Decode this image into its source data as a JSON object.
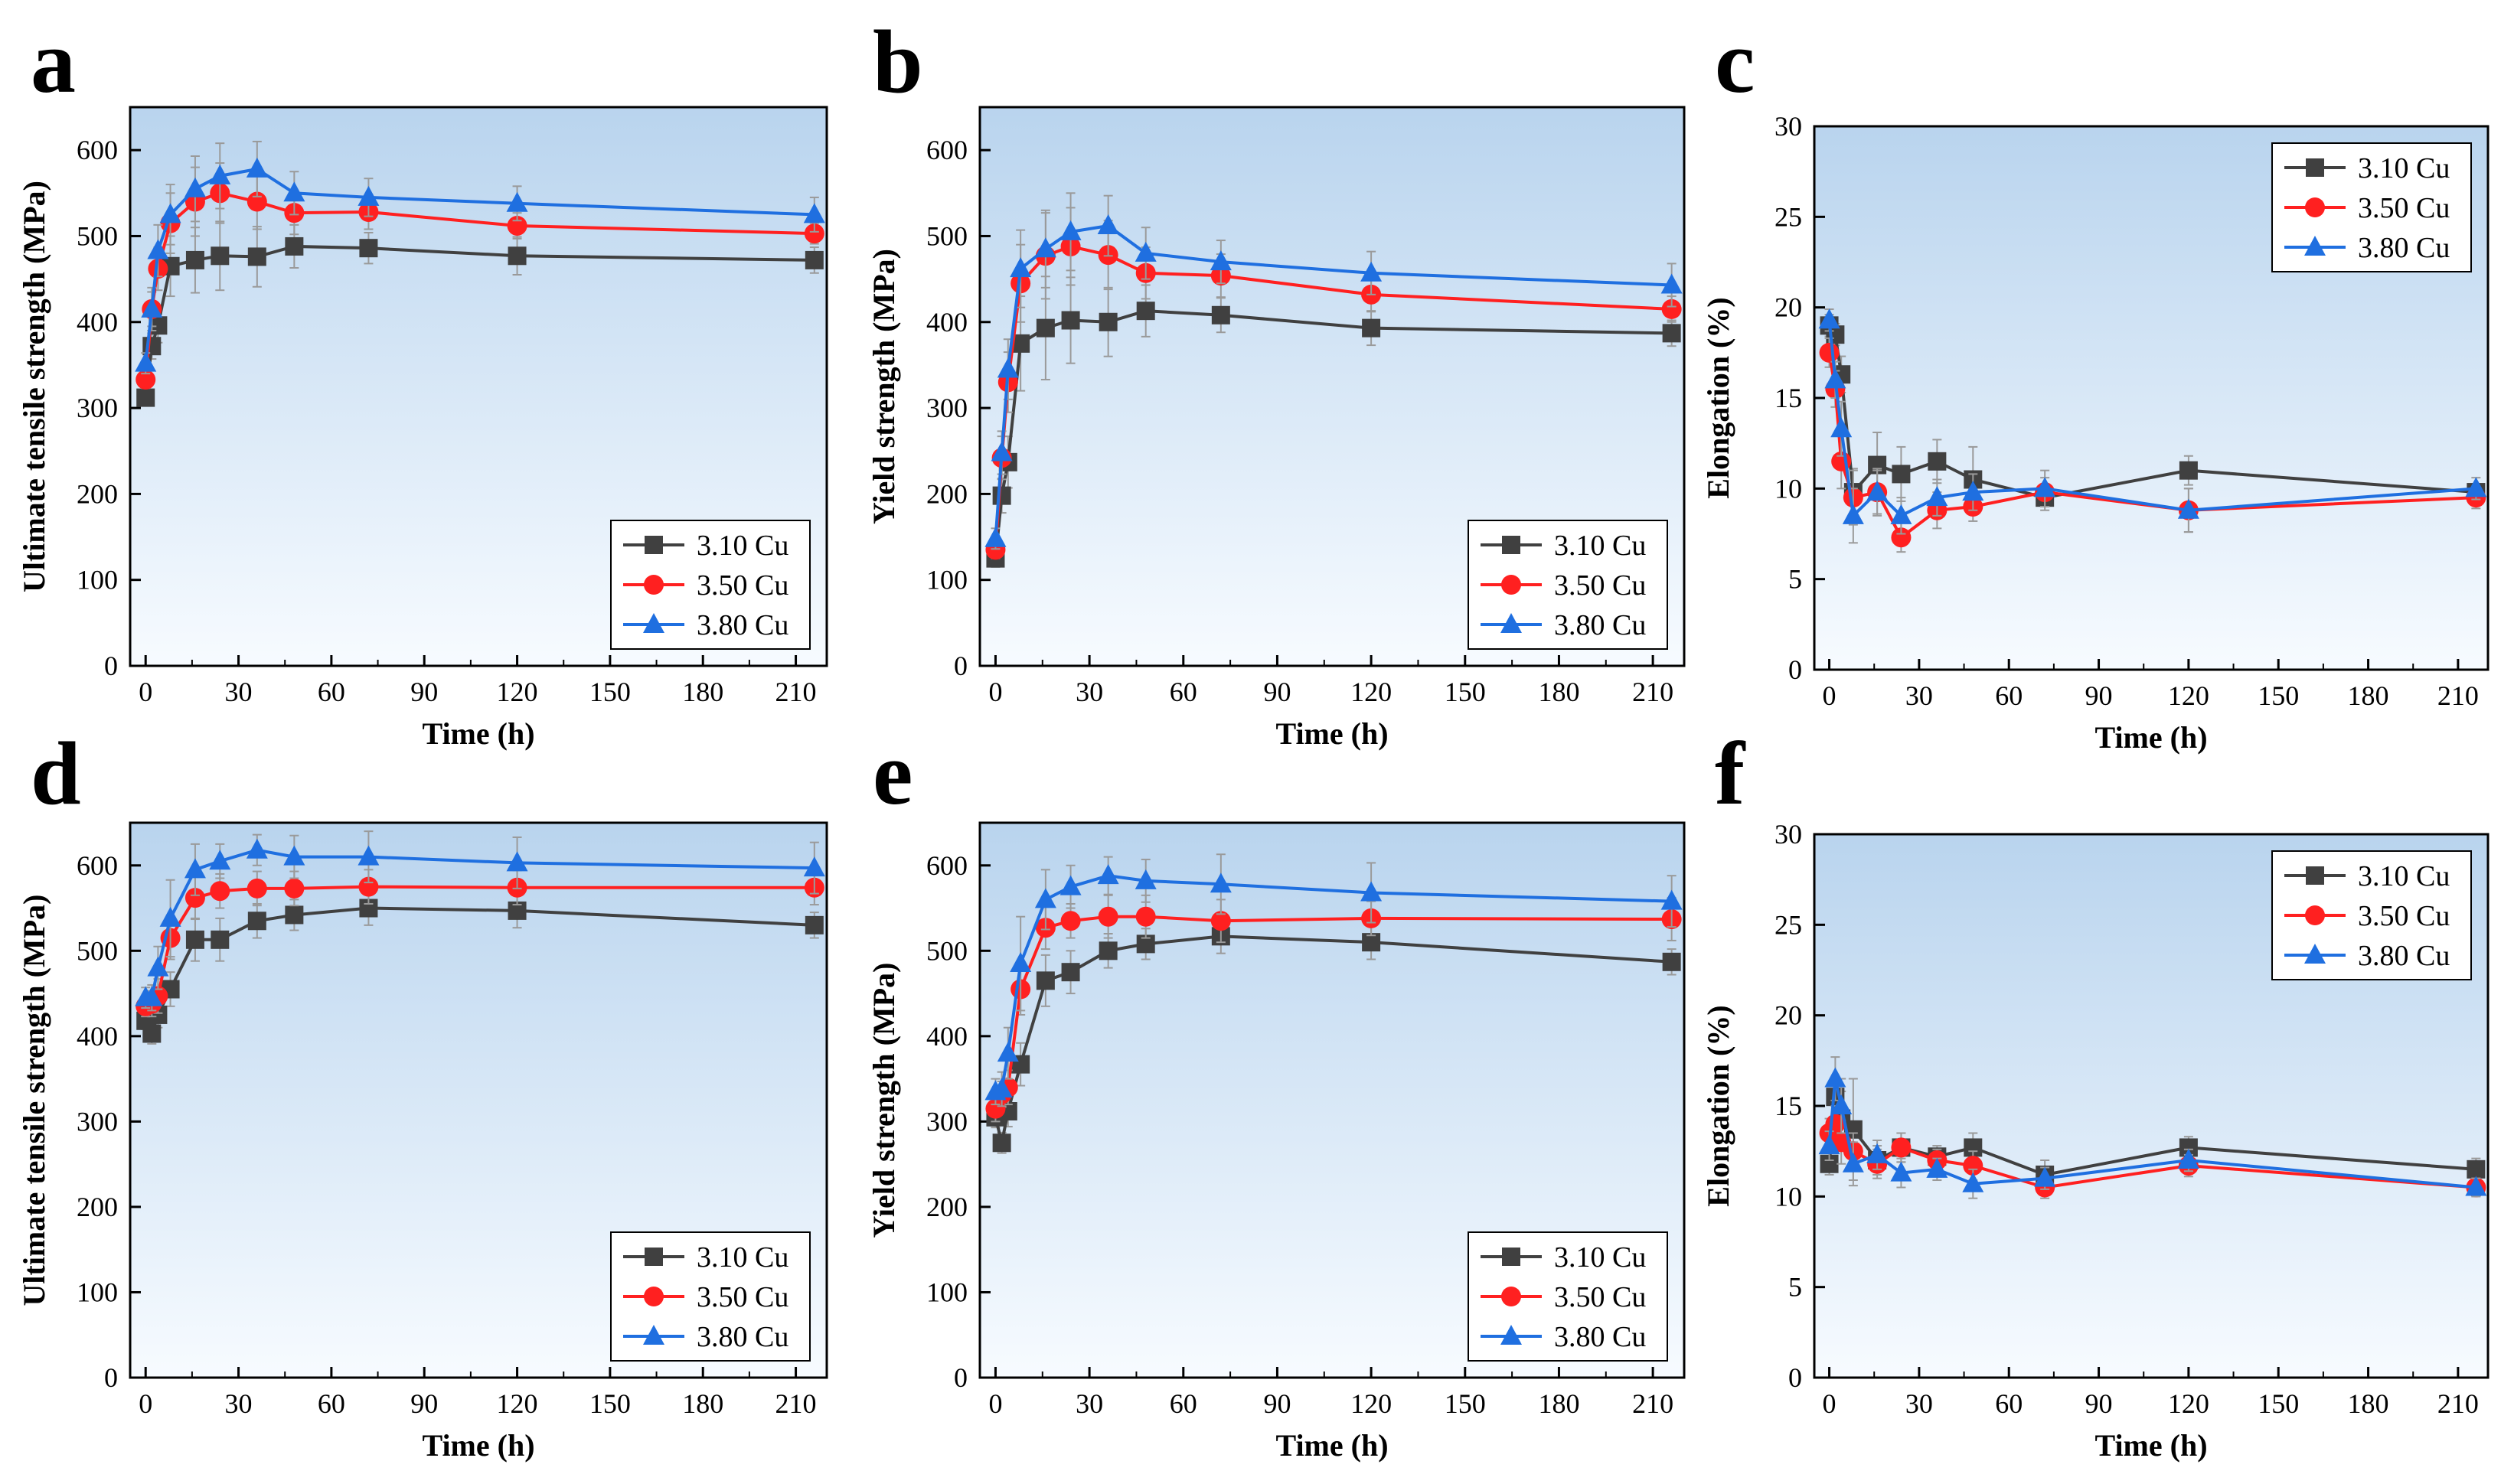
{
  "colors": {
    "series": [
      "#404040",
      "#ff2020",
      "#1f6fe0"
    ],
    "bg_top": "#b9d4ee",
    "bg_bottom": "#f7fbff",
    "error_bar": "#9a9a9a"
  },
  "chart_data": [
    {
      "type": "line",
      "panel": "a",
      "xlabel": "Time (h)",
      "ylabel": "Ultimate tensile strength (MPa)",
      "xlim": [
        -5,
        220
      ],
      "ylim": [
        0,
        650
      ],
      "xticks": [
        0,
        30,
        60,
        90,
        120,
        150,
        180,
        210
      ],
      "yticks": [
        0,
        100,
        200,
        300,
        400,
        500,
        600
      ],
      "legend_position": "bottom-right",
      "series": [
        {
          "name": "3.10 Cu",
          "marker": "square",
          "x": [
            0,
            2,
            4,
            8,
            16,
            24,
            36,
            48,
            72,
            120,
            216
          ],
          "y": [
            312,
            372,
            396,
            465,
            472,
            477,
            476,
            488,
            486,
            477,
            472
          ],
          "err": [
            8,
            15,
            20,
            35,
            38,
            40,
            35,
            25,
            18,
            22,
            15
          ]
        },
        {
          "name": "3.50 Cu",
          "marker": "circle",
          "x": [
            0,
            2,
            4,
            8,
            16,
            24,
            36,
            48,
            72,
            120,
            216
          ],
          "y": [
            333,
            415,
            462,
            515,
            540,
            550,
            540,
            527,
            528,
            512,
            503
          ],
          "err": [
            10,
            20,
            25,
            35,
            40,
            35,
            32,
            25,
            20,
            15,
            12
          ]
        },
        {
          "name": "3.80 Cu",
          "marker": "triangle",
          "x": [
            0,
            2,
            4,
            8,
            16,
            24,
            36,
            48,
            72,
            120,
            216
          ],
          "y": [
            352,
            415,
            483,
            525,
            555,
            570,
            578,
            550,
            545,
            538,
            525
          ],
          "err": [
            12,
            25,
            30,
            35,
            38,
            38,
            32,
            25,
            22,
            20,
            20
          ]
        }
      ]
    },
    {
      "type": "line",
      "panel": "b",
      "xlabel": "Time (h)",
      "ylabel": "Yield strength (MPa)",
      "xlim": [
        -5,
        220
      ],
      "ylim": [
        0,
        650
      ],
      "xticks": [
        0,
        30,
        60,
        90,
        120,
        150,
        180,
        210
      ],
      "yticks": [
        0,
        100,
        200,
        300,
        400,
        500,
        600
      ],
      "legend_position": "bottom-right",
      "series": [
        {
          "name": "3.10 Cu",
          "marker": "square",
          "x": [
            0,
            2,
            4,
            8,
            16,
            24,
            36,
            48,
            72,
            120,
            216
          ],
          "y": [
            125,
            198,
            237,
            375,
            393,
            402,
            400,
            413,
            408,
            393,
            387
          ],
          "err": [
            10,
            20,
            30,
            55,
            60,
            50,
            40,
            30,
            20,
            20,
            15
          ]
        },
        {
          "name": "3.50 Cu",
          "marker": "circle",
          "x": [
            0,
            2,
            4,
            8,
            16,
            24,
            36,
            48,
            72,
            120,
            216
          ],
          "y": [
            135,
            242,
            330,
            445,
            477,
            488,
            478,
            457,
            454,
            432,
            415
          ],
          "err": [
            10,
            25,
            35,
            45,
            50,
            45,
            40,
            30,
            25,
            20,
            15
          ]
        },
        {
          "name": "3.80 Cu",
          "marker": "triangle",
          "x": [
            0,
            2,
            4,
            8,
            16,
            24,
            36,
            48,
            72,
            120,
            216
          ],
          "y": [
            148,
            248,
            345,
            462,
            485,
            505,
            512,
            480,
            470,
            457,
            443
          ],
          "err": [
            12,
            25,
            35,
            45,
            45,
            45,
            35,
            30,
            25,
            25,
            25
          ]
        }
      ]
    },
    {
      "type": "line",
      "panel": "c",
      "xlabel": "Time (h)",
      "ylabel": "Elongation (%)",
      "xlim": [
        -5,
        220
      ],
      "ylim": [
        0,
        30
      ],
      "xticks": [
        0,
        30,
        60,
        90,
        120,
        150,
        180,
        210
      ],
      "yticks": [
        0,
        5,
        10,
        15,
        20,
        25,
        30
      ],
      "legend_position": "top-right",
      "series": [
        {
          "name": "3.10 Cu",
          "marker": "square",
          "x": [
            0,
            2,
            4,
            8,
            16,
            24,
            36,
            48,
            72,
            120,
            216
          ],
          "y": [
            19.0,
            18.5,
            16.3,
            9.8,
            11.3,
            10.8,
            11.5,
            10.5,
            9.5,
            11.0,
            9.8
          ],
          "err": [
            0.6,
            0.6,
            1.0,
            1.3,
            1.8,
            1.5,
            1.2,
            1.8,
            0.7,
            0.8,
            0.4
          ]
        },
        {
          "name": "3.50 Cu",
          "marker": "circle",
          "x": [
            0,
            2,
            4,
            8,
            16,
            24,
            36,
            48,
            72,
            120,
            216
          ],
          "y": [
            17.5,
            15.5,
            11.5,
            9.5,
            9.8,
            7.3,
            8.8,
            9.0,
            9.8,
            8.8,
            9.5
          ],
          "err": [
            0.8,
            1.0,
            1.5,
            1.5,
            1.3,
            0.8,
            1.0,
            0.8,
            0.8,
            1.2,
            0.6
          ]
        },
        {
          "name": "3.80 Cu",
          "marker": "triangle",
          "x": [
            0,
            2,
            4,
            8,
            16,
            24,
            36,
            48,
            72,
            120,
            216
          ],
          "y": [
            19.3,
            16.0,
            13.3,
            8.5,
            9.8,
            8.5,
            9.5,
            9.8,
            10.0,
            8.8,
            10.0
          ],
          "err": [
            0.6,
            1.0,
            1.5,
            1.5,
            1.2,
            1.0,
            1.0,
            1.0,
            1.0,
            1.2,
            0.6
          ]
        }
      ]
    },
    {
      "type": "line",
      "panel": "d",
      "xlabel": "Time (h)",
      "ylabel": "Ultimate tensile strength (MPa)",
      "xlim": [
        -5,
        220
      ],
      "ylim": [
        0,
        650
      ],
      "xticks": [
        0,
        30,
        60,
        90,
        120,
        150,
        180,
        210
      ],
      "yticks": [
        0,
        100,
        200,
        300,
        400,
        500,
        600
      ],
      "legend_position": "bottom-right",
      "series": [
        {
          "name": "3.10 Cu",
          "marker": "square",
          "x": [
            0,
            2,
            4,
            8,
            16,
            24,
            36,
            48,
            72,
            120,
            216
          ],
          "y": [
            418,
            403,
            425,
            455,
            513,
            513,
            535,
            542,
            550,
            547,
            530
          ],
          "err": [
            10,
            12,
            15,
            20,
            25,
            25,
            20,
            18,
            20,
            20,
            15
          ]
        },
        {
          "name": "3.50 Cu",
          "marker": "circle",
          "x": [
            0,
            2,
            4,
            8,
            16,
            24,
            36,
            48,
            72,
            120,
            216
          ],
          "y": [
            435,
            438,
            447,
            515,
            562,
            570,
            573,
            573,
            575,
            574,
            574
          ],
          "err": [
            12,
            15,
            20,
            25,
            25,
            20,
            20,
            20,
            20,
            20,
            20
          ]
        },
        {
          "name": "3.80 Cu",
          "marker": "triangle",
          "x": [
            0,
            2,
            4,
            8,
            16,
            24,
            36,
            48,
            72,
            120,
            216
          ],
          "y": [
            445,
            445,
            480,
            538,
            595,
            605,
            618,
            610,
            610,
            603,
            597
          ],
          "err": [
            12,
            15,
            25,
            45,
            30,
            20,
            18,
            25,
            30,
            30,
            30
          ]
        }
      ]
    },
    {
      "type": "line",
      "panel": "e",
      "xlabel": "Time (h)",
      "ylabel": "Yield strength (MPa)",
      "xlim": [
        -5,
        220
      ],
      "ylim": [
        0,
        650
      ],
      "xticks": [
        0,
        30,
        60,
        90,
        120,
        150,
        180,
        210
      ],
      "yticks": [
        0,
        100,
        200,
        300,
        400,
        500,
        600
      ],
      "legend_position": "bottom-right",
      "series": [
        {
          "name": "3.10 Cu",
          "marker": "square",
          "x": [
            0,
            2,
            4,
            8,
            16,
            24,
            36,
            48,
            72,
            120,
            216
          ],
          "y": [
            305,
            275,
            312,
            367,
            465,
            475,
            500,
            508,
            517,
            510,
            487
          ],
          "err": [
            12,
            12,
            18,
            25,
            30,
            25,
            20,
            18,
            20,
            20,
            15
          ]
        },
        {
          "name": "3.50 Cu",
          "marker": "circle",
          "x": [
            0,
            2,
            4,
            8,
            16,
            24,
            36,
            48,
            72,
            120,
            216
          ],
          "y": [
            315,
            332,
            340,
            455,
            527,
            535,
            540,
            540,
            535,
            538,
            537
          ],
          "err": [
            15,
            15,
            20,
            30,
            25,
            20,
            25,
            25,
            25,
            20,
            25
          ]
        },
        {
          "name": "3.80 Cu",
          "marker": "triangle",
          "x": [
            0,
            2,
            4,
            8,
            16,
            24,
            36,
            48,
            72,
            120,
            216
          ],
          "y": [
            335,
            338,
            380,
            485,
            560,
            575,
            588,
            582,
            578,
            568,
            558
          ],
          "err": [
            15,
            20,
            30,
            55,
            35,
            25,
            22,
            25,
            35,
            35,
            30
          ]
        }
      ]
    },
    {
      "type": "line",
      "panel": "f",
      "xlabel": "Time (h)",
      "ylabel": "Elongation (%)",
      "xlim": [
        -5,
        220
      ],
      "ylim": [
        0,
        30
      ],
      "xticks": [
        0,
        30,
        60,
        90,
        120,
        150,
        180,
        210
      ],
      "yticks": [
        0,
        5,
        10,
        15,
        20,
        25,
        30
      ],
      "legend_position": "top-right",
      "series": [
        {
          "name": "3.10 Cu",
          "marker": "square",
          "x": [
            0,
            2,
            4,
            8,
            16,
            24,
            36,
            48,
            72,
            120,
            216
          ],
          "y": [
            11.8,
            15.5,
            14.3,
            13.7,
            12.0,
            12.7,
            12.2,
            12.7,
            11.2,
            12.7,
            11.5
          ],
          "err": [
            0.6,
            1.0,
            1.5,
            2.8,
            0.8,
            0.8,
            0.6,
            0.8,
            0.8,
            0.6,
            0.6
          ]
        },
        {
          "name": "3.50 Cu",
          "marker": "circle",
          "x": [
            0,
            2,
            4,
            8,
            16,
            24,
            36,
            48,
            72,
            120,
            216
          ],
          "y": [
            13.5,
            14.0,
            13.0,
            12.5,
            11.8,
            12.7,
            12.0,
            11.7,
            10.5,
            11.7,
            10.5
          ],
          "err": [
            0.8,
            1.0,
            1.2,
            1.0,
            0.8,
            0.8,
            0.6,
            0.8,
            0.6,
            0.6,
            0.5
          ]
        },
        {
          "name": "3.80 Cu",
          "marker": "triangle",
          "x": [
            0,
            2,
            4,
            8,
            16,
            24,
            36,
            48,
            72,
            120,
            216
          ],
          "y": [
            12.8,
            16.5,
            15.0,
            11.8,
            12.3,
            11.3,
            11.5,
            10.7,
            11.0,
            12.0,
            10.5
          ],
          "err": [
            0.8,
            1.2,
            1.5,
            1.2,
            0.8,
            0.8,
            0.6,
            0.8,
            0.6,
            0.6,
            0.5
          ]
        }
      ]
    }
  ]
}
